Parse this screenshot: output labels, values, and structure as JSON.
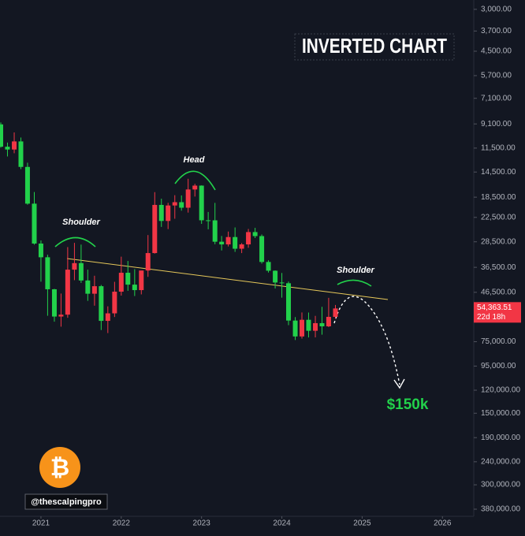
{
  "chart_data": {
    "type": "candlestick",
    "title": "INVERTED CHART",
    "annotations": [
      "Shoulder",
      "Head",
      "Shoulder",
      "$150k"
    ],
    "watermark": "@thescalpingpro",
    "logo": "₿",
    "x": [
      2020.5,
      2020.583,
      2020.667,
      2020.75,
      2020.833,
      2020.917,
      2021,
      2021.083,
      2021.167,
      2021.25,
      2021.333,
      2021.417,
      2021.5,
      2021.583,
      2021.667,
      2021.75,
      2021.833,
      2021.917,
      2022,
      2022.083,
      2022.167,
      2022.25,
      2022.333,
      2022.417,
      2022.5,
      2022.583,
      2022.667,
      2022.75,
      2022.833,
      2022.917,
      2023,
      2023.083,
      2023.167,
      2023.25,
      2023.333,
      2023.417,
      2023.5,
      2023.583,
      2023.667,
      2023.75,
      2023.833,
      2023.917,
      2024,
      2024.083,
      2024.167,
      2024.25,
      2024.333,
      2024.417,
      2024.5,
      2024.583,
      2024.667
    ],
    "open": [
      9140,
      11350,
      11660,
      10780,
      13800,
      19700,
      28990,
      33110,
      45140,
      58790,
      57720,
      37330,
      35040,
      41460,
      47130,
      43820,
      61300,
      57000,
      46210,
      38470,
      43160,
      45510,
      37640,
      31790,
      19940,
      23290,
      20050,
      19420,
      20490,
      17170,
      16540,
      23140,
      23150,
      28480,
      29230,
      27220,
      30480,
      29230,
      25940,
      26970,
      34650,
      37720,
      42280,
      42580,
      61130,
      71290,
      60670,
      67490,
      62680,
      64630,
      58970
    ],
    "high": [
      11450,
      12470,
      12090,
      14100,
      19900,
      29300,
      41950,
      58350,
      61790,
      64850,
      59500,
      41330,
      42450,
      50500,
      52920,
      67000,
      69000,
      59050,
      47990,
      45820,
      48190,
      47440,
      40020,
      31960,
      24670,
      25200,
      22800,
      21090,
      21480,
      18390,
      23960,
      25250,
      29190,
      31000,
      29820,
      31430,
      31800,
      30200,
      27490,
      35200,
      38400,
      44800,
      48970,
      63900,
      73800,
      72800,
      71980,
      71950,
      70080,
      65120,
      60000
    ],
    "low": [
      8970,
      10900,
      9880,
      10380,
      13250,
      17600,
      28130,
      32300,
      44960,
      47050,
      30000,
      28800,
      29280,
      37330,
      39600,
      43290,
      53250,
      42000,
      32920,
      34320,
      37150,
      37700,
      26700,
      17620,
      18780,
      19540,
      18150,
      18190,
      15480,
      16260,
      16500,
      21350,
      19550,
      26940,
      25810,
      24800,
      28860,
      25170,
      24900,
      26550,
      34100,
      37600,
      38550,
      41880,
      59100,
      56500,
      56550,
      58400,
      53500,
      49050,
      52550
    ],
    "close": [
      11350,
      11660,
      10780,
      13800,
      19700,
      28990,
      33110,
      45140,
      58790,
      57720,
      37330,
      35040,
      41460,
      47130,
      43820,
      61300,
      57000,
      46210,
      38470,
      43160,
      45510,
      37640,
      31790,
      19940,
      23290,
      20050,
      19420,
      20490,
      17170,
      16540,
      23140,
      23150,
      28480,
      29230,
      27220,
      30480,
      29230,
      25940,
      26970,
      34650,
      37720,
      42280,
      42580,
      61130,
      71290,
      60670,
      67490,
      62680,
      64630,
      58970,
      54363.51
    ],
    "up_color": "#22d14b",
    "down_color": "#f23645",
    "last_price": {
      "value": 54363.51,
      "label": "54,363.51",
      "countdown": "22d 18h"
    },
    "xlim": [
      2020.49,
      2026.39
    ],
    "xticks": [
      2021,
      2022,
      2023,
      2024,
      2025,
      2026
    ],
    "ylim": [
      2740,
      407000
    ],
    "log_scale": true,
    "inverted": true,
    "yticks": [
      {
        "value": 3000,
        "label": "3,000.00"
      },
      {
        "value": 3700,
        "label": "3,700.00"
      },
      {
        "value": 4500,
        "label": "4,500.00"
      },
      {
        "value": 5700,
        "label": "5,700.00"
      },
      {
        "value": 7100,
        "label": "7,100.00"
      },
      {
        "value": 9100,
        "label": "9,100.00"
      },
      {
        "value": 11500,
        "label": "11,500.00"
      },
      {
        "value": 14500,
        "label": "14,500.00"
      },
      {
        "value": 18500,
        "label": "18,500.00"
      },
      {
        "value": 22500,
        "label": "22,500.00"
      },
      {
        "value": 28500,
        "label": "28,500.00"
      },
      {
        "value": 36500,
        "label": "36,500.00"
      },
      {
        "value": 46500,
        "label": "46,500.00"
      },
      {
        "value": 75000,
        "label": "75,000.00"
      },
      {
        "value": 95000,
        "label": "95,000.00"
      },
      {
        "value": 120000,
        "label": "120,000.00"
      },
      {
        "value": 150000,
        "label": "150,000.00"
      },
      {
        "value": 190000,
        "label": "190,000.00"
      },
      {
        "value": 240000,
        "label": "240,000.00"
      },
      {
        "value": 300000,
        "label": "300,000.00"
      },
      {
        "value": 380000,
        "label": "380,000.00"
      }
    ],
    "grid": false
  }
}
